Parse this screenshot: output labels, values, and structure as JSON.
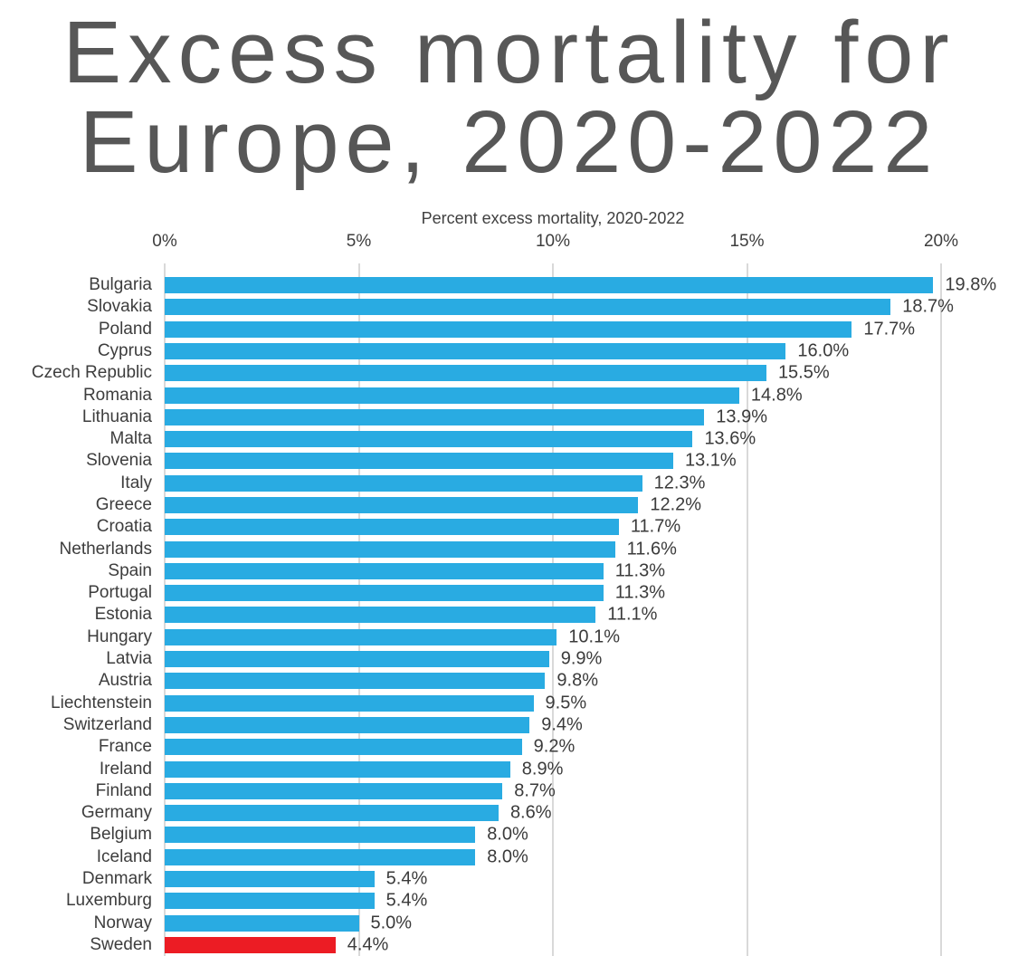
{
  "title": {
    "line1": "Excess mortality for",
    "line2": "Europe, 2020-2022"
  },
  "colors": {
    "title_text": "#575757",
    "label_text": "#3d3d3d",
    "bar": "#29ABE2",
    "highlight": "#EC1C24",
    "gridline": "#d9d9d9"
  },
  "chart_data": {
    "type": "bar",
    "orientation": "horizontal",
    "title": "Excess mortality for Europe, 2020-2022",
    "xlabel": "Percent excess mortality, 2020-2022",
    "xlim": [
      0,
      20
    ],
    "grid": true,
    "tick_labels": [
      "0%",
      "5%",
      "10%",
      "15%",
      "20%"
    ],
    "tick_values": [
      0,
      5,
      10,
      15,
      20
    ],
    "categories": [
      "Bulgaria",
      "Slovakia",
      "Poland",
      "Cyprus",
      "Czech Republic",
      "Romania",
      "Lithuania",
      "Malta",
      "Slovenia",
      "Italy",
      "Greece",
      "Croatia",
      "Netherlands",
      "Spain",
      "Portugal",
      "Estonia",
      "Hungary",
      "Latvia",
      "Austria",
      "Liechtenstein",
      "Switzerland",
      "France",
      "Ireland",
      "Finland",
      "Germany",
      "Belgium",
      "Iceland",
      "Denmark",
      "Luxemburg",
      "Norway",
      "Sweden"
    ],
    "values": [
      19.8,
      18.7,
      17.7,
      16.0,
      15.5,
      14.8,
      13.9,
      13.6,
      13.1,
      12.3,
      12.2,
      11.7,
      11.6,
      11.3,
      11.3,
      11.1,
      10.1,
      9.9,
      9.8,
      9.5,
      9.4,
      9.2,
      8.9,
      8.7,
      8.6,
      8.0,
      8.0,
      5.4,
      5.4,
      5.0,
      4.4
    ],
    "value_labels": [
      "19.8%",
      "18.7%",
      "17.7%",
      "16.0%",
      "15.5%",
      "14.8%",
      "13.9%",
      "13.6%",
      "13.1%",
      "12.3%",
      "12.2%",
      "11.7%",
      "11.6%",
      "11.3%",
      "11.3%",
      "11.1%",
      "10.1%",
      "9.9%",
      "9.8%",
      "9.5%",
      "9.4%",
      "9.2%",
      "8.9%",
      "8.7%",
      "8.6%",
      "8.0%",
      "8.0%",
      "5.4%",
      "5.4%",
      "5.0%",
      "4.4%"
    ],
    "highlight_category": "Sweden",
    "legend": "none"
  }
}
